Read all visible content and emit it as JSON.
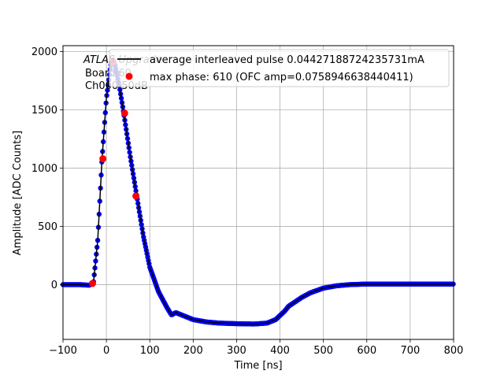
{
  "chart_data": {
    "type": "scatter",
    "title": "",
    "xlabel": "Time [ns]",
    "ylabel": "Amplitude [ADC Counts]",
    "xlim": [
      -100,
      800
    ],
    "ylim": [
      -470,
      2050
    ],
    "grid": true,
    "xticks": [
      -100,
      0,
      100,
      200,
      300,
      400,
      500,
      600,
      700,
      800
    ],
    "xtick_labels": [
      "−100",
      "0",
      "100",
      "200",
      "300",
      "400",
      "500",
      "600",
      "700",
      "800"
    ],
    "yticks": [
      0,
      500,
      1000,
      1500,
      2000
    ],
    "ytick_labels": [
      "0",
      "500",
      "1000",
      "1500",
      "2000"
    ],
    "annotation_lines": [
      "ATLAS Upgrade",
      "Board 60",
      "Ch000 50dB"
    ],
    "legend_position": "top-right",
    "legend": [
      {
        "label": "average interleaved pulse 0.04427188724235731mA",
        "marker": "line",
        "color": "#000000"
      },
      {
        "label": "max phase: 610 (OFC amp=0.0758946638440411)",
        "marker": "dot",
        "color": "#ff0000"
      }
    ],
    "series": [
      {
        "name": "average interleaved pulse 0.04427188724235731mA",
        "style": "line",
        "color": "#000000",
        "x": [
          -100,
          -60,
          -40,
          -30,
          -20,
          -10,
          0,
          10,
          15,
          20,
          30,
          40,
          55,
          70,
          85,
          100,
          120,
          140,
          150,
          160,
          180,
          200,
          230,
          260,
          300,
          340,
          370,
          390,
          410,
          420,
          430,
          450,
          470,
          500,
          530,
          560,
          600,
          650,
          700,
          750,
          800
        ],
        "y": [
          0,
          0,
          -5,
          10,
          380,
          1080,
          1600,
          1880,
          1930,
          1880,
          1700,
          1470,
          1100,
          760,
          420,
          150,
          -60,
          -200,
          -260,
          -240,
          -270,
          -300,
          -320,
          -330,
          -335,
          -338,
          -330,
          -300,
          -230,
          -185,
          -160,
          -110,
          -70,
          -30,
          -10,
          0,
          5,
          5,
          5,
          5,
          5
        ]
      },
      {
        "name": "",
        "style": "dense-dots",
        "color": "#0000ff",
        "x": [
          -100,
          -60,
          -40,
          -30,
          -20,
          -10,
          0,
          10,
          15,
          20,
          30,
          40,
          55,
          70,
          85,
          100,
          120,
          140,
          150,
          160,
          180,
          200,
          230,
          260,
          300,
          340,
          370,
          390,
          410,
          420,
          430,
          450,
          470,
          500,
          530,
          560,
          600,
          650,
          700,
          750,
          800
        ],
        "y": [
          0,
          0,
          -5,
          10,
          380,
          1080,
          1600,
          1880,
          1930,
          1880,
          1700,
          1470,
          1100,
          760,
          420,
          150,
          -60,
          -200,
          -260,
          -240,
          -270,
          -300,
          -320,
          -330,
          -335,
          -338,
          -330,
          -300,
          -230,
          -185,
          -160,
          -110,
          -70,
          -30,
          -10,
          0,
          5,
          5,
          5,
          5,
          5
        ]
      },
      {
        "name": "max phase: 610 (OFC amp=0.0758946638440411)",
        "style": "points",
        "color": "#ff0000",
        "x": [
          -32,
          -8,
          15,
          42,
          68
        ],
        "y": [
          10,
          1080,
          1910,
          1470,
          760
        ]
      }
    ]
  }
}
